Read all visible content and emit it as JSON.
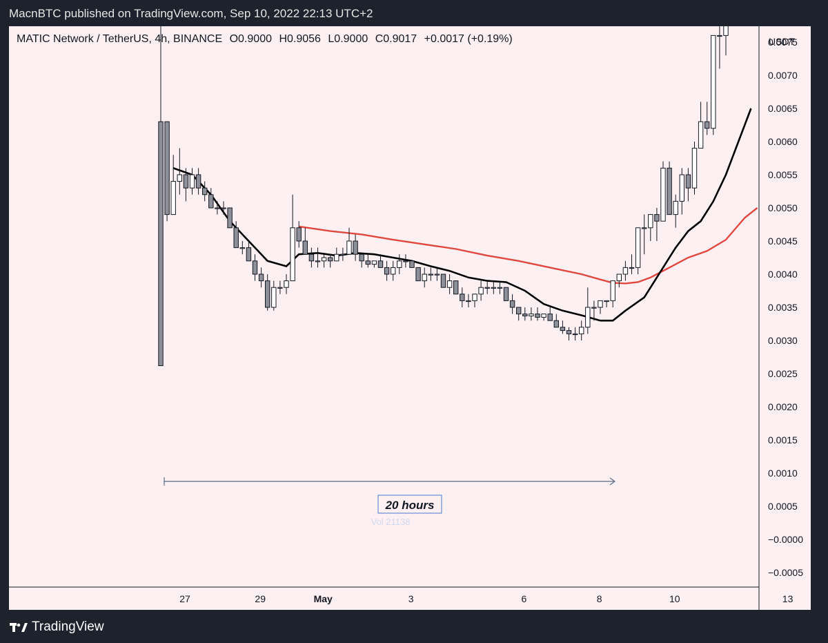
{
  "topbar": {
    "published": "MacnBTC published on TradingView.com, Sep 10, 2022 22:13 UTC+2"
  },
  "header": {
    "symbol": "MATIC Network / TetherUS, 4h, BINANCE",
    "open": "O0.9000",
    "high": "H0.9056",
    "low": "L0.9000",
    "close": "C0.9017",
    "change": "+0.0017 (+0.19%)"
  },
  "footer": {
    "brand": "TradingView"
  },
  "colors": {
    "background": "#fcf0f2",
    "candle_up": "#ffffff",
    "candle_down": "#8d8f99",
    "ma_fast": "#000000",
    "ma_slow": "#e0473e",
    "measure": "#5b6a85"
  },
  "chart_data": {
    "type": "candlestick",
    "currency": "USDT",
    "ylim": [
      -0.0007,
      0.0079
    ],
    "yticks": [
      "0.0075",
      "0.0070",
      "0.0065",
      "0.0060",
      "0.0055",
      "0.0050",
      "0.0045",
      "0.0040",
      "0.0035",
      "0.0030",
      "0.0025",
      "0.0020",
      "0.0015",
      "0.0010",
      "0.0005",
      "−0.0000",
      "−0.0005"
    ],
    "ytick_values": [
      0.0075,
      0.007,
      0.0065,
      0.006,
      0.0055,
      0.005,
      0.0045,
      0.004,
      0.0035,
      0.003,
      0.0025,
      0.002,
      0.0015,
      0.001,
      0.0005,
      0.0,
      -0.0005
    ],
    "x_dates": [
      {
        "label": "27",
        "index": 0
      },
      {
        "label": "29",
        "index": 12
      },
      {
        "label": "May",
        "index": 22
      },
      {
        "label": "3",
        "index": 36
      },
      {
        "label": "6",
        "index": 54
      },
      {
        "label": "8",
        "index": 66
      },
      {
        "label": "10",
        "index": 78
      },
      {
        "label": "13",
        "index": 96
      }
    ],
    "candles": [
      [
        0.0063,
        0.008,
        0.00262,
        0.00262
      ],
      [
        0.0063,
        0.0063,
        0.0048,
        0.0049
      ],
      [
        0.0049,
        0.0058,
        0.0049,
        0.0054
      ],
      [
        0.0054,
        0.0059,
        0.0052,
        0.0055
      ],
      [
        0.0055,
        0.0056,
        0.0051,
        0.0053
      ],
      [
        0.0053,
        0.0056,
        0.0052,
        0.0055
      ],
      [
        0.0055,
        0.0056,
        0.0052,
        0.0053
      ],
      [
        0.0053,
        0.0054,
        0.0051,
        0.0052
      ],
      [
        0.0052,
        0.0053,
        0.005,
        0.005
      ],
      [
        0.005,
        0.0051,
        0.0049,
        0.005
      ],
      [
        0.005,
        0.0051,
        0.0049,
        0.005
      ],
      [
        0.005,
        0.005,
        0.0047,
        0.0047
      ],
      [
        0.0047,
        0.0048,
        0.0044,
        0.0044
      ],
      [
        0.0044,
        0.0045,
        0.0043,
        0.0044
      ],
      [
        0.0044,
        0.0045,
        0.0042,
        0.0042
      ],
      [
        0.0042,
        0.0043,
        0.0039,
        0.004
      ],
      [
        0.004,
        0.0041,
        0.0038,
        0.0039
      ],
      [
        0.0039,
        0.004,
        0.00345,
        0.0035
      ],
      [
        0.0035,
        0.0039,
        0.00345,
        0.0038
      ],
      [
        0.0038,
        0.0039,
        0.0037,
        0.0038
      ],
      [
        0.0038,
        0.004,
        0.0037,
        0.0039
      ],
      [
        0.0039,
        0.0052,
        0.0039,
        0.0047
      ],
      [
        0.0047,
        0.0048,
        0.0044,
        0.0045
      ],
      [
        0.0045,
        0.0047,
        0.0043,
        0.0043
      ],
      [
        0.0043,
        0.0044,
        0.0041,
        0.0042
      ],
      [
        0.0042,
        0.0044,
        0.0041,
        0.0042
      ],
      [
        0.0042,
        0.0043,
        0.0041,
        0.00425
      ],
      [
        0.00425,
        0.0043,
        0.0041,
        0.0042
      ],
      [
        0.0042,
        0.0044,
        0.0042,
        0.0043
      ],
      [
        0.0043,
        0.0044,
        0.0042,
        0.0043
      ],
      [
        0.0043,
        0.0047,
        0.0043,
        0.0045
      ],
      [
        0.0045,
        0.0046,
        0.0042,
        0.0043
      ],
      [
        0.0043,
        0.0043,
        0.0041,
        0.0042
      ],
      [
        0.0042,
        0.0043,
        0.0041,
        0.00415
      ],
      [
        0.00415,
        0.0042,
        0.0041,
        0.0042
      ],
      [
        0.0042,
        0.0043,
        0.0041,
        0.0041
      ],
      [
        0.0041,
        0.0042,
        0.0039,
        0.004
      ],
      [
        0.004,
        0.0042,
        0.0039,
        0.0041
      ],
      [
        0.0041,
        0.0043,
        0.004,
        0.0042
      ],
      [
        0.0042,
        0.0043,
        0.0041,
        0.0042
      ],
      [
        0.0042,
        0.0042,
        0.0041,
        0.0041
      ],
      [
        0.0041,
        0.0041,
        0.0039,
        0.0039
      ],
      [
        0.0039,
        0.0041,
        0.0038,
        0.004
      ],
      [
        0.004,
        0.0041,
        0.0039,
        0.004
      ],
      [
        0.004,
        0.0041,
        0.0039,
        0.004
      ],
      [
        0.004,
        0.004,
        0.0038,
        0.0038
      ],
      [
        0.0038,
        0.004,
        0.0037,
        0.0039
      ],
      [
        0.0039,
        0.0039,
        0.0037,
        0.0037
      ],
      [
        0.0037,
        0.0038,
        0.0035,
        0.0036
      ],
      [
        0.0036,
        0.0037,
        0.0035,
        0.0036
      ],
      [
        0.0036,
        0.0037,
        0.0035,
        0.0037
      ],
      [
        0.0037,
        0.0039,
        0.0036,
        0.0038
      ],
      [
        0.0038,
        0.0039,
        0.0037,
        0.0038
      ],
      [
        0.0038,
        0.0039,
        0.0037,
        0.0038
      ],
      [
        0.0038,
        0.0039,
        0.0037,
        0.0038
      ],
      [
        0.0038,
        0.0038,
        0.0036,
        0.0036
      ],
      [
        0.0036,
        0.0037,
        0.0034,
        0.0035
      ],
      [
        0.0035,
        0.0035,
        0.0033,
        0.0034
      ],
      [
        0.0034,
        0.0035,
        0.0033,
        0.00337
      ],
      [
        0.00337,
        0.0035,
        0.0033,
        0.0034
      ],
      [
        0.0034,
        0.0035,
        0.0033,
        0.00335
      ],
      [
        0.00335,
        0.0034,
        0.0033,
        0.0034
      ],
      [
        0.0034,
        0.0035,
        0.0033,
        0.0033
      ],
      [
        0.0033,
        0.0034,
        0.0032,
        0.0032
      ],
      [
        0.0032,
        0.0033,
        0.0031,
        0.00315
      ],
      [
        0.00315,
        0.0032,
        0.003,
        0.0031
      ],
      [
        0.0031,
        0.0032,
        0.003,
        0.0031
      ],
      [
        0.0031,
        0.0033,
        0.003,
        0.0032
      ],
      [
        0.0032,
        0.0038,
        0.0031,
        0.0035
      ],
      [
        0.0035,
        0.0036,
        0.0033,
        0.0035
      ],
      [
        0.0035,
        0.0036,
        0.0034,
        0.0036
      ],
      [
        0.0036,
        0.0036,
        0.0035,
        0.0036
      ],
      [
        0.0036,
        0.0039,
        0.0035,
        0.0039
      ],
      [
        0.0039,
        0.004,
        0.0038,
        0.004
      ],
      [
        0.004,
        0.0042,
        0.0039,
        0.0041
      ],
      [
        0.0041,
        0.0043,
        0.004,
        0.0041
      ],
      [
        0.0041,
        0.0047,
        0.004,
        0.0047
      ],
      [
        0.0047,
        0.0049,
        0.0043,
        0.0047
      ],
      [
        0.0047,
        0.0049,
        0.0045,
        0.0049
      ],
      [
        0.0049,
        0.005,
        0.0045,
        0.0048
      ],
      [
        0.0048,
        0.0057,
        0.0048,
        0.0056
      ],
      [
        0.0056,
        0.0057,
        0.0049,
        0.0049
      ],
      [
        0.0049,
        0.0052,
        0.0047,
        0.0051
      ],
      [
        0.0051,
        0.0056,
        0.0049,
        0.0055
      ],
      [
        0.0055,
        0.0056,
        0.0051,
        0.0053
      ],
      [
        0.0053,
        0.006,
        0.0052,
        0.0059
      ],
      [
        0.0059,
        0.0066,
        0.0059,
        0.0063
      ],
      [
        0.0063,
        0.0066,
        0.0061,
        0.0062
      ],
      [
        0.0062,
        0.0076,
        0.0061,
        0.0076
      ],
      [
        0.0076,
        0.008,
        0.0071,
        0.0076
      ],
      [
        0.0076,
        0.008,
        0.0073,
        0.008
      ]
    ],
    "ma_fast": [
      [
        2,
        0.0056
      ],
      [
        5,
        0.0055
      ],
      [
        8,
        0.0052
      ],
      [
        11,
        0.0048
      ],
      [
        14,
        0.0045
      ],
      [
        17,
        0.0042
      ],
      [
        20,
        0.00412
      ],
      [
        22,
        0.0043
      ],
      [
        25,
        0.00432
      ],
      [
        28,
        0.00428
      ],
      [
        31,
        0.00432
      ],
      [
        34,
        0.0043
      ],
      [
        37,
        0.00425
      ],
      [
        40,
        0.0042
      ],
      [
        43,
        0.00412
      ],
      [
        46,
        0.00405
      ],
      [
        49,
        0.00395
      ],
      [
        52,
        0.0039
      ],
      [
        55,
        0.00388
      ],
      [
        58,
        0.00375
      ],
      [
        61,
        0.00355
      ],
      [
        64,
        0.00345
      ],
      [
        67,
        0.00338
      ],
      [
        70,
        0.0033
      ],
      [
        72,
        0.0033
      ],
      [
        74,
        0.00345
      ],
      [
        77,
        0.00365
      ],
      [
        80,
        0.0041
      ],
      [
        82,
        0.0044
      ],
      [
        84,
        0.00465
      ],
      [
        86,
        0.0048
      ],
      [
        88,
        0.0051
      ],
      [
        90,
        0.0055
      ],
      [
        92,
        0.006
      ],
      [
        94,
        0.0065
      ]
    ],
    "ma_slow": [
      [
        22,
        0.00472
      ],
      [
        27,
        0.00465
      ],
      [
        32,
        0.0046
      ],
      [
        37,
        0.00452
      ],
      [
        42,
        0.00445
      ],
      [
        47,
        0.00438
      ],
      [
        52,
        0.00428
      ],
      [
        57,
        0.0042
      ],
      [
        62,
        0.0041
      ],
      [
        67,
        0.004
      ],
      [
        70,
        0.00392
      ],
      [
        72,
        0.00387
      ],
      [
        74,
        0.00386
      ],
      [
        76,
        0.00388
      ],
      [
        78,
        0.00395
      ],
      [
        81,
        0.0041
      ],
      [
        84,
        0.00425
      ],
      [
        87,
        0.00435
      ],
      [
        90,
        0.00452
      ],
      [
        93,
        0.00485
      ],
      [
        95,
        0.005
      ]
    ],
    "measure": {
      "label": "20 hours",
      "ghost_text": "Vol 21138"
    }
  }
}
